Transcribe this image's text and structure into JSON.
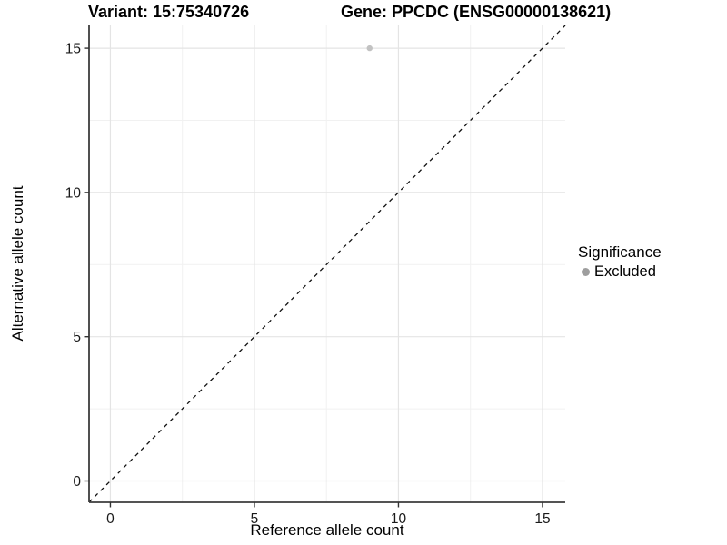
{
  "titles": {
    "variant": "Variant: 15:75340726",
    "gene": "Gene: PPCDC (ENSG00000138621)"
  },
  "axes": {
    "x": {
      "label": "Reference allele count",
      "ticks": [
        "0",
        "5",
        "10",
        "15"
      ]
    },
    "y": {
      "label": "Alternative allele count",
      "ticks": [
        "0",
        "5",
        "10",
        "15"
      ]
    }
  },
  "legend": {
    "title": "Significance",
    "items": [
      {
        "label": "Excluded",
        "key_color": "#9e9e9e"
      }
    ]
  },
  "chart_data": {
    "type": "scatter",
    "title": [
      "Variant: 15:75340726",
      "Gene: PPCDC (ENSG00000138621)"
    ],
    "xlabel": "Reference allele count",
    "ylabel": "Alternative allele count",
    "xlim": [
      -0.74,
      15.79
    ],
    "ylim": [
      -0.74,
      15.79
    ],
    "x_major_ticks": [
      0,
      5,
      10,
      15
    ],
    "y_major_ticks": [
      0,
      5,
      10,
      15
    ],
    "x_minor_ticks": [
      2.5,
      7.5,
      12.5
    ],
    "y_minor_ticks": [
      2.5,
      7.5,
      12.5
    ],
    "grid": "major and minor gridlines on white panel",
    "legend_position": "right",
    "series": [
      {
        "name": "Excluded",
        "type": "scatter",
        "color": "#c2c2c2",
        "points": [
          {
            "x": 9,
            "y": 15
          }
        ]
      }
    ],
    "reference_line": {
      "slope": 1,
      "intercept": 0,
      "style": "dashed",
      "color": "#111111"
    }
  },
  "style_colors": {
    "grid_major": "#e4e4e4",
    "grid_minor": "#f1f1f1",
    "axis_line": "#3c3c3c",
    "tick_mark": "#333333",
    "point": "#c2c2c2"
  }
}
